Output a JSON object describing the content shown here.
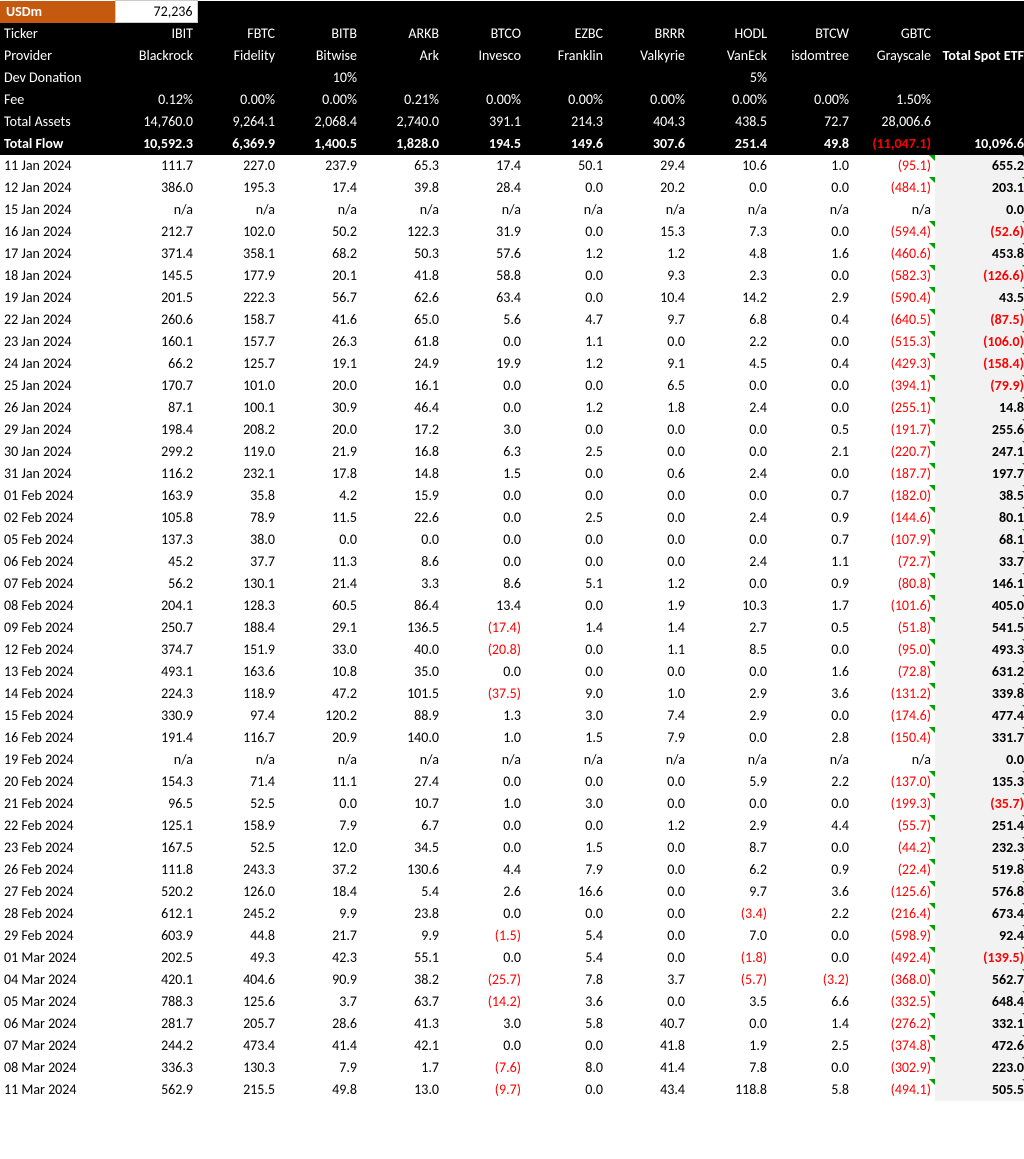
{
  "topLabel": "USDm",
  "topValue": "72,236",
  "headerRows": [
    {
      "label": "Ticker",
      "vals": [
        "IBIT",
        "FBTC",
        "BITB",
        "ARKB",
        "BTCO",
        "EZBC",
        "BRRR",
        "HODL",
        "BTCW",
        "GBTC"
      ],
      "total": "",
      "bold": false
    },
    {
      "label": "Provider",
      "vals": [
        "Blackrock",
        "Fidelity",
        "Bitwise",
        "Ark",
        "Invesco",
        "Franklin",
        "Valkyrie",
        "VanEck",
        "isdomtree",
        "Grayscale"
      ],
      "total": "Total Spot ETF",
      "bold": false,
      "totalBold": true
    },
    {
      "label": "Dev Donation",
      "vals": [
        "",
        "",
        "10%",
        "",
        "",
        "",
        "",
        "5%",
        "",
        ""
      ],
      "total": "",
      "bold": false
    },
    {
      "label": "Fee",
      "vals": [
        "0.12%",
        "0.00%",
        "0.00%",
        "0.21%",
        "0.00%",
        "0.00%",
        "0.00%",
        "0.00%",
        "0.00%",
        "1.50%"
      ],
      "total": "",
      "bold": false
    },
    {
      "label": "Total Assets",
      "vals": [
        "14,760.0",
        "9,264.1",
        "2,068.4",
        "2,740.0",
        "391.1",
        "214.3",
        "404.3",
        "438.5",
        "72.7",
        "28,006.6"
      ],
      "total": "",
      "bold": false
    },
    {
      "label": "Total Flow",
      "vals": [
        "10,592.3",
        "6,369.9",
        "1,400.5",
        "1,828.0",
        "194.5",
        "149.6",
        "307.6",
        "251.4",
        "49.8"
      ],
      "gbtc": "(11,047.1)",
      "total": "10,096.6",
      "bold": true
    }
  ],
  "rows": [
    {
      "d": "11 Jan 2024",
      "v": [
        "111.7",
        "227.0",
        "237.9",
        "65.3",
        "17.4",
        "50.1",
        "29.4",
        "10.6",
        "1.0",
        "(95.1)"
      ],
      "t": "655.2"
    },
    {
      "d": "12 Jan 2024",
      "v": [
        "386.0",
        "195.3",
        "17.4",
        "39.8",
        "28.4",
        "0.0",
        "20.2",
        "0.0",
        "0.0",
        "(484.1)"
      ],
      "t": "203.1"
    },
    {
      "d": "15 Jan 2024",
      "v": [
        "n/a",
        "n/a",
        "n/a",
        "n/a",
        "n/a",
        "n/a",
        "n/a",
        "n/a",
        "n/a",
        "n/a"
      ],
      "t": "0.0",
      "noTri": true
    },
    {
      "d": "16 Jan 2024",
      "v": [
        "212.7",
        "102.0",
        "50.2",
        "122.3",
        "31.9",
        "0.0",
        "15.3",
        "7.3",
        "0.0",
        "(594.4)"
      ],
      "t": "(52.6)"
    },
    {
      "d": "17 Jan 2024",
      "v": [
        "371.4",
        "358.1",
        "68.2",
        "50.3",
        "57.6",
        "1.2",
        "1.2",
        "4.8",
        "1.6",
        "(460.6)"
      ],
      "t": "453.8"
    },
    {
      "d": "18 Jan 2024",
      "v": [
        "145.5",
        "177.9",
        "20.1",
        "41.8",
        "58.8",
        "0.0",
        "9.3",
        "2.3",
        "0.0",
        "(582.3)"
      ],
      "t": "(126.6)"
    },
    {
      "d": "19 Jan 2024",
      "v": [
        "201.5",
        "222.3",
        "56.7",
        "62.6",
        "63.4",
        "0.0",
        "10.4",
        "14.2",
        "2.9",
        "(590.4)"
      ],
      "t": "43.5"
    },
    {
      "d": "22 Jan 2024",
      "v": [
        "260.6",
        "158.7",
        "41.6",
        "65.0",
        "5.6",
        "4.7",
        "9.7",
        "6.8",
        "0.4",
        "(640.5)"
      ],
      "t": "(87.5)"
    },
    {
      "d": "23 Jan 2024",
      "v": [
        "160.1",
        "157.7",
        "26.3",
        "61.8",
        "0.0",
        "1.1",
        "0.0",
        "2.2",
        "0.0",
        "(515.3)"
      ],
      "t": "(106.0)"
    },
    {
      "d": "24 Jan 2024",
      "v": [
        "66.2",
        "125.7",
        "19.1",
        "24.9",
        "19.9",
        "1.2",
        "9.1",
        "4.5",
        "0.4",
        "(429.3)"
      ],
      "t": "(158.4)"
    },
    {
      "d": "25 Jan 2024",
      "v": [
        "170.7",
        "101.0",
        "20.0",
        "16.1",
        "0.0",
        "0.0",
        "6.5",
        "0.0",
        "0.0",
        "(394.1)"
      ],
      "t": "(79.9)"
    },
    {
      "d": "26 Jan 2024",
      "v": [
        "87.1",
        "100.1",
        "30.9",
        "46.4",
        "0.0",
        "1.2",
        "1.8",
        "2.4",
        "0.0",
        "(255.1)"
      ],
      "t": "14.8"
    },
    {
      "d": "29 Jan 2024",
      "v": [
        "198.4",
        "208.2",
        "20.0",
        "17.2",
        "3.0",
        "0.0",
        "0.0",
        "0.0",
        "0.5",
        "(191.7)"
      ],
      "t": "255.6"
    },
    {
      "d": "30 Jan 2024",
      "v": [
        "299.2",
        "119.0",
        "21.9",
        "16.8",
        "6.3",
        "2.5",
        "0.0",
        "0.0",
        "2.1",
        "(220.7)"
      ],
      "t": "247.1"
    },
    {
      "d": "31 Jan 2024",
      "v": [
        "116.2",
        "232.1",
        "17.8",
        "14.8",
        "1.5",
        "0.0",
        "0.6",
        "2.4",
        "0.0",
        "(187.7)"
      ],
      "t": "197.7"
    },
    {
      "d": "01 Feb 2024",
      "v": [
        "163.9",
        "35.8",
        "4.2",
        "15.9",
        "0.0",
        "0.0",
        "0.0",
        "0.0",
        "0.7",
        "(182.0)"
      ],
      "t": "38.5"
    },
    {
      "d": "02 Feb 2024",
      "v": [
        "105.8",
        "78.9",
        "11.5",
        "22.6",
        "0.0",
        "2.5",
        "0.0",
        "2.4",
        "0.9",
        "(144.6)"
      ],
      "t": "80.1"
    },
    {
      "d": "05 Feb 2024",
      "v": [
        "137.3",
        "38.0",
        "0.0",
        "0.0",
        "0.0",
        "0.0",
        "0.0",
        "0.0",
        "0.7",
        "(107.9)"
      ],
      "t": "68.1"
    },
    {
      "d": "06 Feb 2024",
      "v": [
        "45.2",
        "37.7",
        "11.3",
        "8.6",
        "0.0",
        "0.0",
        "0.0",
        "2.4",
        "1.1",
        "(72.7)"
      ],
      "t": "33.7"
    },
    {
      "d": "07 Feb 2024",
      "v": [
        "56.2",
        "130.1",
        "21.4",
        "3.3",
        "8.6",
        "5.1",
        "1.2",
        "0.0",
        "0.9",
        "(80.8)"
      ],
      "t": "146.1"
    },
    {
      "d": "08 Feb 2024",
      "v": [
        "204.1",
        "128.3",
        "60.5",
        "86.4",
        "13.4",
        "0.0",
        "1.9",
        "10.3",
        "1.7",
        "(101.6)"
      ],
      "t": "405.0"
    },
    {
      "d": "09 Feb 2024",
      "v": [
        "250.7",
        "188.4",
        "29.1",
        "136.5",
        "(17.4)",
        "1.4",
        "1.4",
        "2.7",
        "0.5",
        "(51.8)"
      ],
      "t": "541.5"
    },
    {
      "d": "12 Feb 2024",
      "v": [
        "374.7",
        "151.9",
        "33.0",
        "40.0",
        "(20.8)",
        "0.0",
        "1.1",
        "8.5",
        "0.0",
        "(95.0)"
      ],
      "t": "493.3"
    },
    {
      "d": "13 Feb 2024",
      "v": [
        "493.1",
        "163.6",
        "10.8",
        "35.0",
        "0.0",
        "0.0",
        "0.0",
        "0.0",
        "1.6",
        "(72.8)"
      ],
      "t": "631.2"
    },
    {
      "d": "14 Feb 2024",
      "v": [
        "224.3",
        "118.9",
        "47.2",
        "101.5",
        "(37.5)",
        "9.0",
        "1.0",
        "2.9",
        "3.6",
        "(131.2)"
      ],
      "t": "339.8"
    },
    {
      "d": "15 Feb 2024",
      "v": [
        "330.9",
        "97.4",
        "120.2",
        "88.9",
        "1.3",
        "3.0",
        "7.4",
        "2.9",
        "0.0",
        "(174.6)"
      ],
      "t": "477.4"
    },
    {
      "d": "16 Feb 2024",
      "v": [
        "191.4",
        "116.7",
        "20.9",
        "140.0",
        "1.0",
        "1.5",
        "7.9",
        "0.0",
        "2.8",
        "(150.4)"
      ],
      "t": "331.7"
    },
    {
      "d": "19 Feb 2024",
      "v": [
        "n/a",
        "n/a",
        "n/a",
        "n/a",
        "n/a",
        "n/a",
        "n/a",
        "n/a",
        "n/a",
        "n/a"
      ],
      "t": "0.0",
      "noTri": true
    },
    {
      "d": "20 Feb 2024",
      "v": [
        "154.3",
        "71.4",
        "11.1",
        "27.4",
        "0.0",
        "0.0",
        "0.0",
        "5.9",
        "2.2",
        "(137.0)"
      ],
      "t": "135.3"
    },
    {
      "d": "21 Feb 2024",
      "v": [
        "96.5",
        "52.5",
        "0.0",
        "10.7",
        "1.0",
        "3.0",
        "0.0",
        "0.0",
        "0.0",
        "(199.3)"
      ],
      "t": "(35.7)"
    },
    {
      "d": "22 Feb 2024",
      "v": [
        "125.1",
        "158.9",
        "7.9",
        "6.7",
        "0.0",
        "0.0",
        "1.2",
        "2.9",
        "4.4",
        "(55.7)"
      ],
      "t": "251.4"
    },
    {
      "d": "23 Feb 2024",
      "v": [
        "167.5",
        "52.5",
        "12.0",
        "34.5",
        "0.0",
        "1.5",
        "0.0",
        "8.7",
        "0.0",
        "(44.2)"
      ],
      "t": "232.3"
    },
    {
      "d": "26 Feb 2024",
      "v": [
        "111.8",
        "243.3",
        "37.2",
        "130.6",
        "4.4",
        "7.9",
        "0.0",
        "6.2",
        "0.9",
        "(22.4)"
      ],
      "t": "519.8"
    },
    {
      "d": "27 Feb 2024",
      "v": [
        "520.2",
        "126.0",
        "18.4",
        "5.4",
        "2.6",
        "16.6",
        "0.0",
        "9.7",
        "3.6",
        "(125.6)"
      ],
      "t": "576.8"
    },
    {
      "d": "28 Feb 2024",
      "v": [
        "612.1",
        "245.2",
        "9.9",
        "23.8",
        "0.0",
        "0.0",
        "0.0",
        "(3.4)",
        "2.2",
        "(216.4)"
      ],
      "t": "673.4"
    },
    {
      "d": "29 Feb 2024",
      "v": [
        "603.9",
        "44.8",
        "21.7",
        "9.9",
        "(1.5)",
        "5.4",
        "0.0",
        "7.0",
        "0.0",
        "(598.9)"
      ],
      "t": "92.4"
    },
    {
      "d": "01 Mar 2024",
      "v": [
        "202.5",
        "49.3",
        "42.3",
        "55.1",
        "0.0",
        "5.4",
        "0.0",
        "(1.8)",
        "0.0",
        "(492.4)"
      ],
      "t": "(139.5)"
    },
    {
      "d": "04 Mar 2024",
      "v": [
        "420.1",
        "404.6",
        "90.9",
        "38.2",
        "(25.7)",
        "7.8",
        "3.7",
        "(5.7)",
        "(3.2)",
        "(368.0)"
      ],
      "t": "562.7"
    },
    {
      "d": "05 Mar 2024",
      "v": [
        "788.3",
        "125.6",
        "3.7",
        "63.7",
        "(14.2)",
        "3.6",
        "0.0",
        "3.5",
        "6.6",
        "(332.5)"
      ],
      "t": "648.4"
    },
    {
      "d": "06 Mar 2024",
      "v": [
        "281.7",
        "205.7",
        "28.6",
        "41.3",
        "3.0",
        "5.8",
        "40.7",
        "0.0",
        "1.4",
        "(276.2)"
      ],
      "t": "332.1"
    },
    {
      "d": "07 Mar 2024",
      "v": [
        "244.2",
        "473.4",
        "41.4",
        "42.1",
        "0.0",
        "0.0",
        "41.8",
        "1.9",
        "2.5",
        "(374.8)"
      ],
      "t": "472.6"
    },
    {
      "d": "08 Mar 2024",
      "v": [
        "336.3",
        "130.3",
        "7.9",
        "1.7",
        "(7.6)",
        "8.0",
        "41.4",
        "7.8",
        "0.0",
        "(302.9)"
      ],
      "t": "223.0"
    },
    {
      "d": "11 Mar 2024",
      "v": [
        "562.9",
        "215.5",
        "49.8",
        "13.0",
        "(9.7)",
        "0.0",
        "43.4",
        "118.8",
        "5.8",
        "(494.1)"
      ],
      "t": "505.5"
    }
  ]
}
